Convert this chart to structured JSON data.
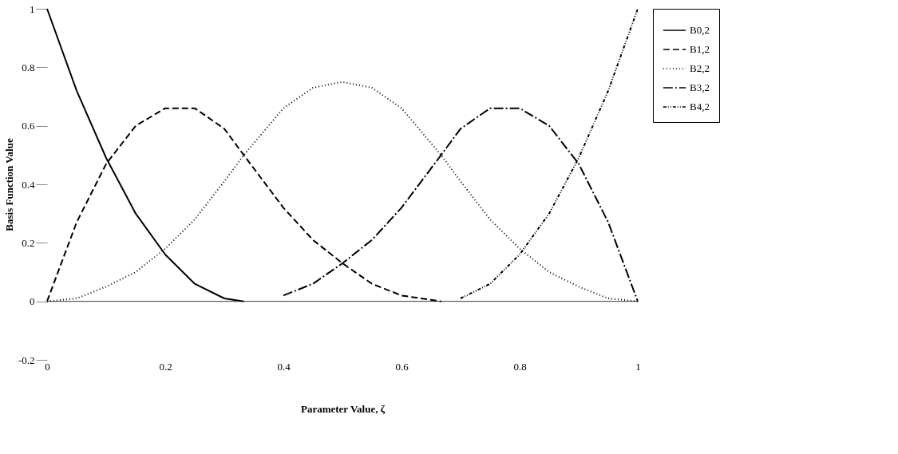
{
  "chart_data": {
    "type": "line",
    "xlabel": "Parameter Value, ζ",
    "ylabel": "Basis Function Value",
    "x": [
      0,
      0.05,
      0.1,
      0.15,
      0.2,
      0.25,
      0.3,
      0.333,
      0.4,
      0.45,
      0.5,
      0.55,
      0.6,
      0.667,
      0.7,
      0.75,
      0.8,
      0.85,
      0.9,
      0.95,
      1
    ],
    "series": [
      {
        "name": "B0,2",
        "color": "#000000",
        "line_style": "solid",
        "x": [
          0,
          0.05,
          0.1,
          0.15,
          0.2,
          0.25,
          0.3,
          0.333
        ],
        "values": [
          1,
          0.72,
          0.49,
          0.3,
          0.16,
          0.06,
          0.01,
          0
        ]
      },
      {
        "name": "B1,2",
        "color": "#000000",
        "line_style": "dashed",
        "x": [
          0,
          0.05,
          0.1,
          0.15,
          0.2,
          0.25,
          0.3,
          0.333,
          0.4,
          0.45,
          0.5,
          0.55,
          0.6,
          0.667
        ],
        "values": [
          0,
          0.27,
          0.47,
          0.6,
          0.66,
          0.66,
          0.59,
          0.5,
          0.32,
          0.21,
          0.13,
          0.06,
          0.02,
          0
        ]
      },
      {
        "name": "B2,2",
        "color": "#000000",
        "line_style": "dotted",
        "values": [
          0,
          0.01,
          0.05,
          0.1,
          0.18,
          0.28,
          0.41,
          0.5,
          0.66,
          0.73,
          0.75,
          0.73,
          0.66,
          0.5,
          0.41,
          0.28,
          0.18,
          0.1,
          0.05,
          0.01,
          0
        ]
      },
      {
        "name": "B3,2",
        "color": "#000000",
        "line_style": "dashdot",
        "x": [
          0.4,
          0.45,
          0.5,
          0.55,
          0.6,
          0.667,
          0.7,
          0.75,
          0.8,
          0.85,
          0.9,
          0.95,
          1
        ],
        "values": [
          0.02,
          0.06,
          0.13,
          0.21,
          0.32,
          0.5,
          0.59,
          0.66,
          0.66,
          0.6,
          0.47,
          0.27,
          0
        ]
      },
      {
        "name": "B4,2",
        "color": "#000000",
        "line_style": "dashdotdot",
        "x": [
          0.7,
          0.75,
          0.8,
          0.85,
          0.9,
          0.95,
          1
        ],
        "values": [
          0.01,
          0.06,
          0.16,
          0.3,
          0.49,
          0.72,
          1
        ]
      }
    ],
    "ref_lines": [
      {
        "axis": "y",
        "value": 0,
        "color": "#000000",
        "line_style": "solid"
      }
    ],
    "xlim": [
      0,
      1
    ],
    "xticks": [
      0,
      0.2,
      0.4,
      0.6,
      0.8,
      1
    ],
    "ylim": [
      -0.2,
      1
    ],
    "yticks": [
      -0.2,
      0,
      0.2,
      0.4,
      0.6,
      0.8,
      1
    ],
    "grid": false,
    "legend": "right",
    "marker": "none"
  }
}
